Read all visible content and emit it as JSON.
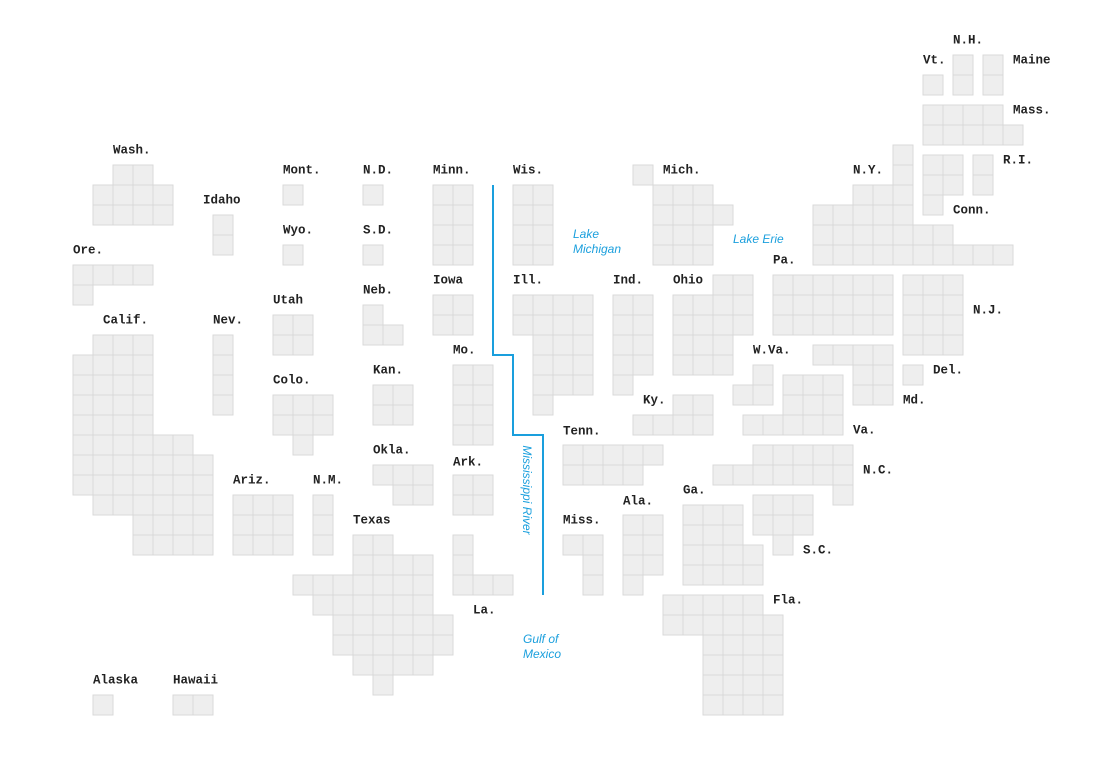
{
  "states": [
    {
      "label": "Wash."
    },
    {
      "label": "Ore."
    },
    {
      "label": "Calif."
    },
    {
      "label": "Idaho"
    },
    {
      "label": "Nev."
    },
    {
      "label": "Mont."
    },
    {
      "label": "Wyo."
    },
    {
      "label": "Utah"
    },
    {
      "label": "Colo."
    },
    {
      "label": "N.D."
    },
    {
      "label": "S.D."
    },
    {
      "label": "Neb."
    },
    {
      "label": "Kan."
    },
    {
      "label": "Okla."
    },
    {
      "label": "Ariz."
    },
    {
      "label": "N.M."
    },
    {
      "label": "Texas"
    },
    {
      "label": "Minn."
    },
    {
      "label": "Iowa"
    },
    {
      "label": "Mo."
    },
    {
      "label": "Ark."
    },
    {
      "label": "La."
    },
    {
      "label": "Wis."
    },
    {
      "label": "Ill."
    },
    {
      "label": "Mich."
    },
    {
      "label": "Ind."
    },
    {
      "label": "Ohio"
    },
    {
      "label": "Ky."
    },
    {
      "label": "Tenn."
    },
    {
      "label": "Miss."
    },
    {
      "label": "Ala."
    },
    {
      "label": "Ga."
    },
    {
      "label": "Fla."
    },
    {
      "label": "S.C."
    },
    {
      "label": "N.C."
    },
    {
      "label": "Va."
    },
    {
      "label": "W.Va."
    },
    {
      "label": "Pa."
    },
    {
      "label": "N.Y."
    },
    {
      "label": "N.J."
    },
    {
      "label": "Md."
    },
    {
      "label": "Del."
    },
    {
      "label": "Vt."
    },
    {
      "label": "N.H."
    },
    {
      "label": "Maine"
    },
    {
      "label": "Mass."
    },
    {
      "label": "R.I."
    },
    {
      "label": "Conn."
    },
    {
      "label": "Alaska"
    },
    {
      "label": "Hawaii"
    }
  ],
  "annotations": {
    "lake_michigan": [
      "Lake",
      "Michigan"
    ],
    "lake_erie": [
      "Lake Erie"
    ],
    "gulf": [
      "Gulf of",
      "Mexico"
    ],
    "river": [
      "Mississippi River"
    ]
  }
}
